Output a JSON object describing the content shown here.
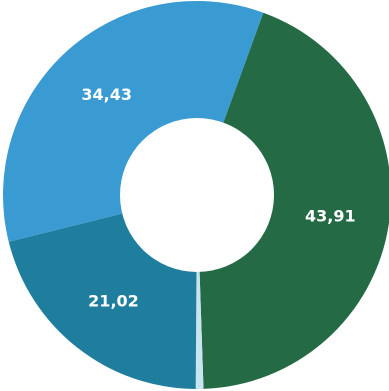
{
  "chart_data": {
    "type": "pie",
    "style": "donut",
    "slices": [
      {
        "label": "43,91",
        "value": 43.91,
        "color": "#246B45"
      },
      {
        "label": "0,64",
        "value": 0.64,
        "color": "#C8E4F0",
        "show_label": false
      },
      {
        "label": "21,02",
        "value": 21.02,
        "color": "#1F7E9D"
      },
      {
        "label": "34,43",
        "value": 34.43,
        "color": "#3A9AD2"
      }
    ],
    "start_angle_deg": -70,
    "direction": "clockwise"
  }
}
